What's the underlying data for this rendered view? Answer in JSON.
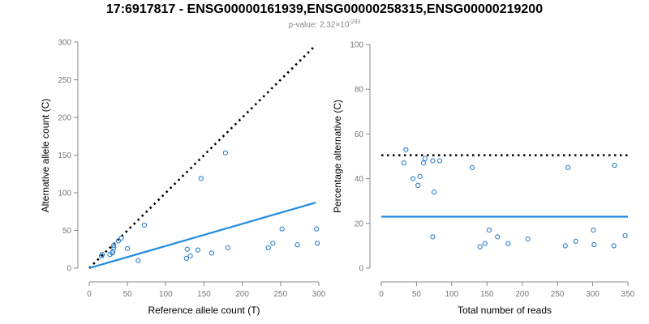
{
  "header": {
    "title": "17:6917817 - ENSG00000161939,ENSG00000258315,ENSG00000219200",
    "pvalue_prefix": "p-value: 2.32×10",
    "pvalue_exponent": "-293"
  },
  "colors": {
    "points": "#1f78c8",
    "fit_line": "#1f8be0",
    "reference_line": "#000000",
    "axis": "#888888"
  },
  "chart_data": [
    {
      "type": "scatter",
      "xlabel": "Reference allele count (T)",
      "ylabel": "Alternative allele count (C)",
      "xlim": [
        0,
        300
      ],
      "ylim": [
        0,
        300
      ],
      "xticks": [
        0,
        50,
        100,
        150,
        200,
        250,
        300
      ],
      "yticks": [
        0,
        50,
        100,
        150,
        200,
        250,
        300
      ],
      "points": [
        [
          16,
          16
        ],
        [
          17,
          18
        ],
        [
          27,
          18
        ],
        [
          30,
          20
        ],
        [
          31,
          22
        ],
        [
          32,
          27
        ],
        [
          32,
          30
        ],
        [
          38,
          36
        ],
        [
          42,
          40
        ],
        [
          50,
          26
        ],
        [
          64,
          10
        ],
        [
          72,
          57
        ],
        [
          127,
          13
        ],
        [
          128,
          25
        ],
        [
          132,
          16
        ],
        [
          142,
          24
        ],
        [
          146,
          119
        ],
        [
          160,
          20
        ],
        [
          178,
          153
        ],
        [
          181,
          27
        ],
        [
          234,
          27
        ],
        [
          240,
          33
        ],
        [
          252,
          52
        ],
        [
          272,
          31
        ],
        [
          297,
          52
        ],
        [
          298,
          33
        ]
      ],
      "reference_line": {
        "style": "dotted",
        "from": [
          0,
          0
        ],
        "to": [
          296,
          296
        ]
      },
      "fit_line": {
        "style": "solid",
        "from": [
          0,
          0
        ],
        "to": [
          296,
          87
        ]
      }
    },
    {
      "type": "scatter",
      "xlabel": "Total number of reads",
      "ylabel": "Percentage alternative (C)",
      "xlim": [
        0,
        350
      ],
      "ylim": [
        0,
        100
      ],
      "xticks": [
        0,
        50,
        100,
        150,
        200,
        250,
        300,
        350
      ],
      "yticks": [
        0,
        20,
        40,
        60,
        80,
        100
      ],
      "points": [
        [
          32,
          47
        ],
        [
          35,
          53
        ],
        [
          45,
          40
        ],
        [
          52,
          37
        ],
        [
          55,
          41
        ],
        [
          60,
          47
        ],
        [
          62,
          49
        ],
        [
          73,
          14
        ],
        [
          73,
          48
        ],
        [
          75,
          34
        ],
        [
          83,
          48
        ],
        [
          129,
          45
        ],
        [
          140,
          9.5
        ],
        [
          147,
          11
        ],
        [
          153,
          17
        ],
        [
          165,
          14
        ],
        [
          180,
          11
        ],
        [
          208,
          13
        ],
        [
          261,
          10
        ],
        [
          265,
          45
        ],
        [
          276,
          12
        ],
        [
          301,
          17
        ],
        [
          302,
          10.5
        ],
        [
          330,
          10
        ],
        [
          331,
          46
        ],
        [
          346,
          14.5
        ]
      ],
      "reference_line": {
        "style": "dotted",
        "from": [
          0,
          50.5
        ],
        "to": [
          350,
          50.5
        ]
      },
      "fit_line": {
        "style": "solid",
        "from": [
          0,
          23
        ],
        "to": [
          350,
          23
        ]
      }
    }
  ]
}
